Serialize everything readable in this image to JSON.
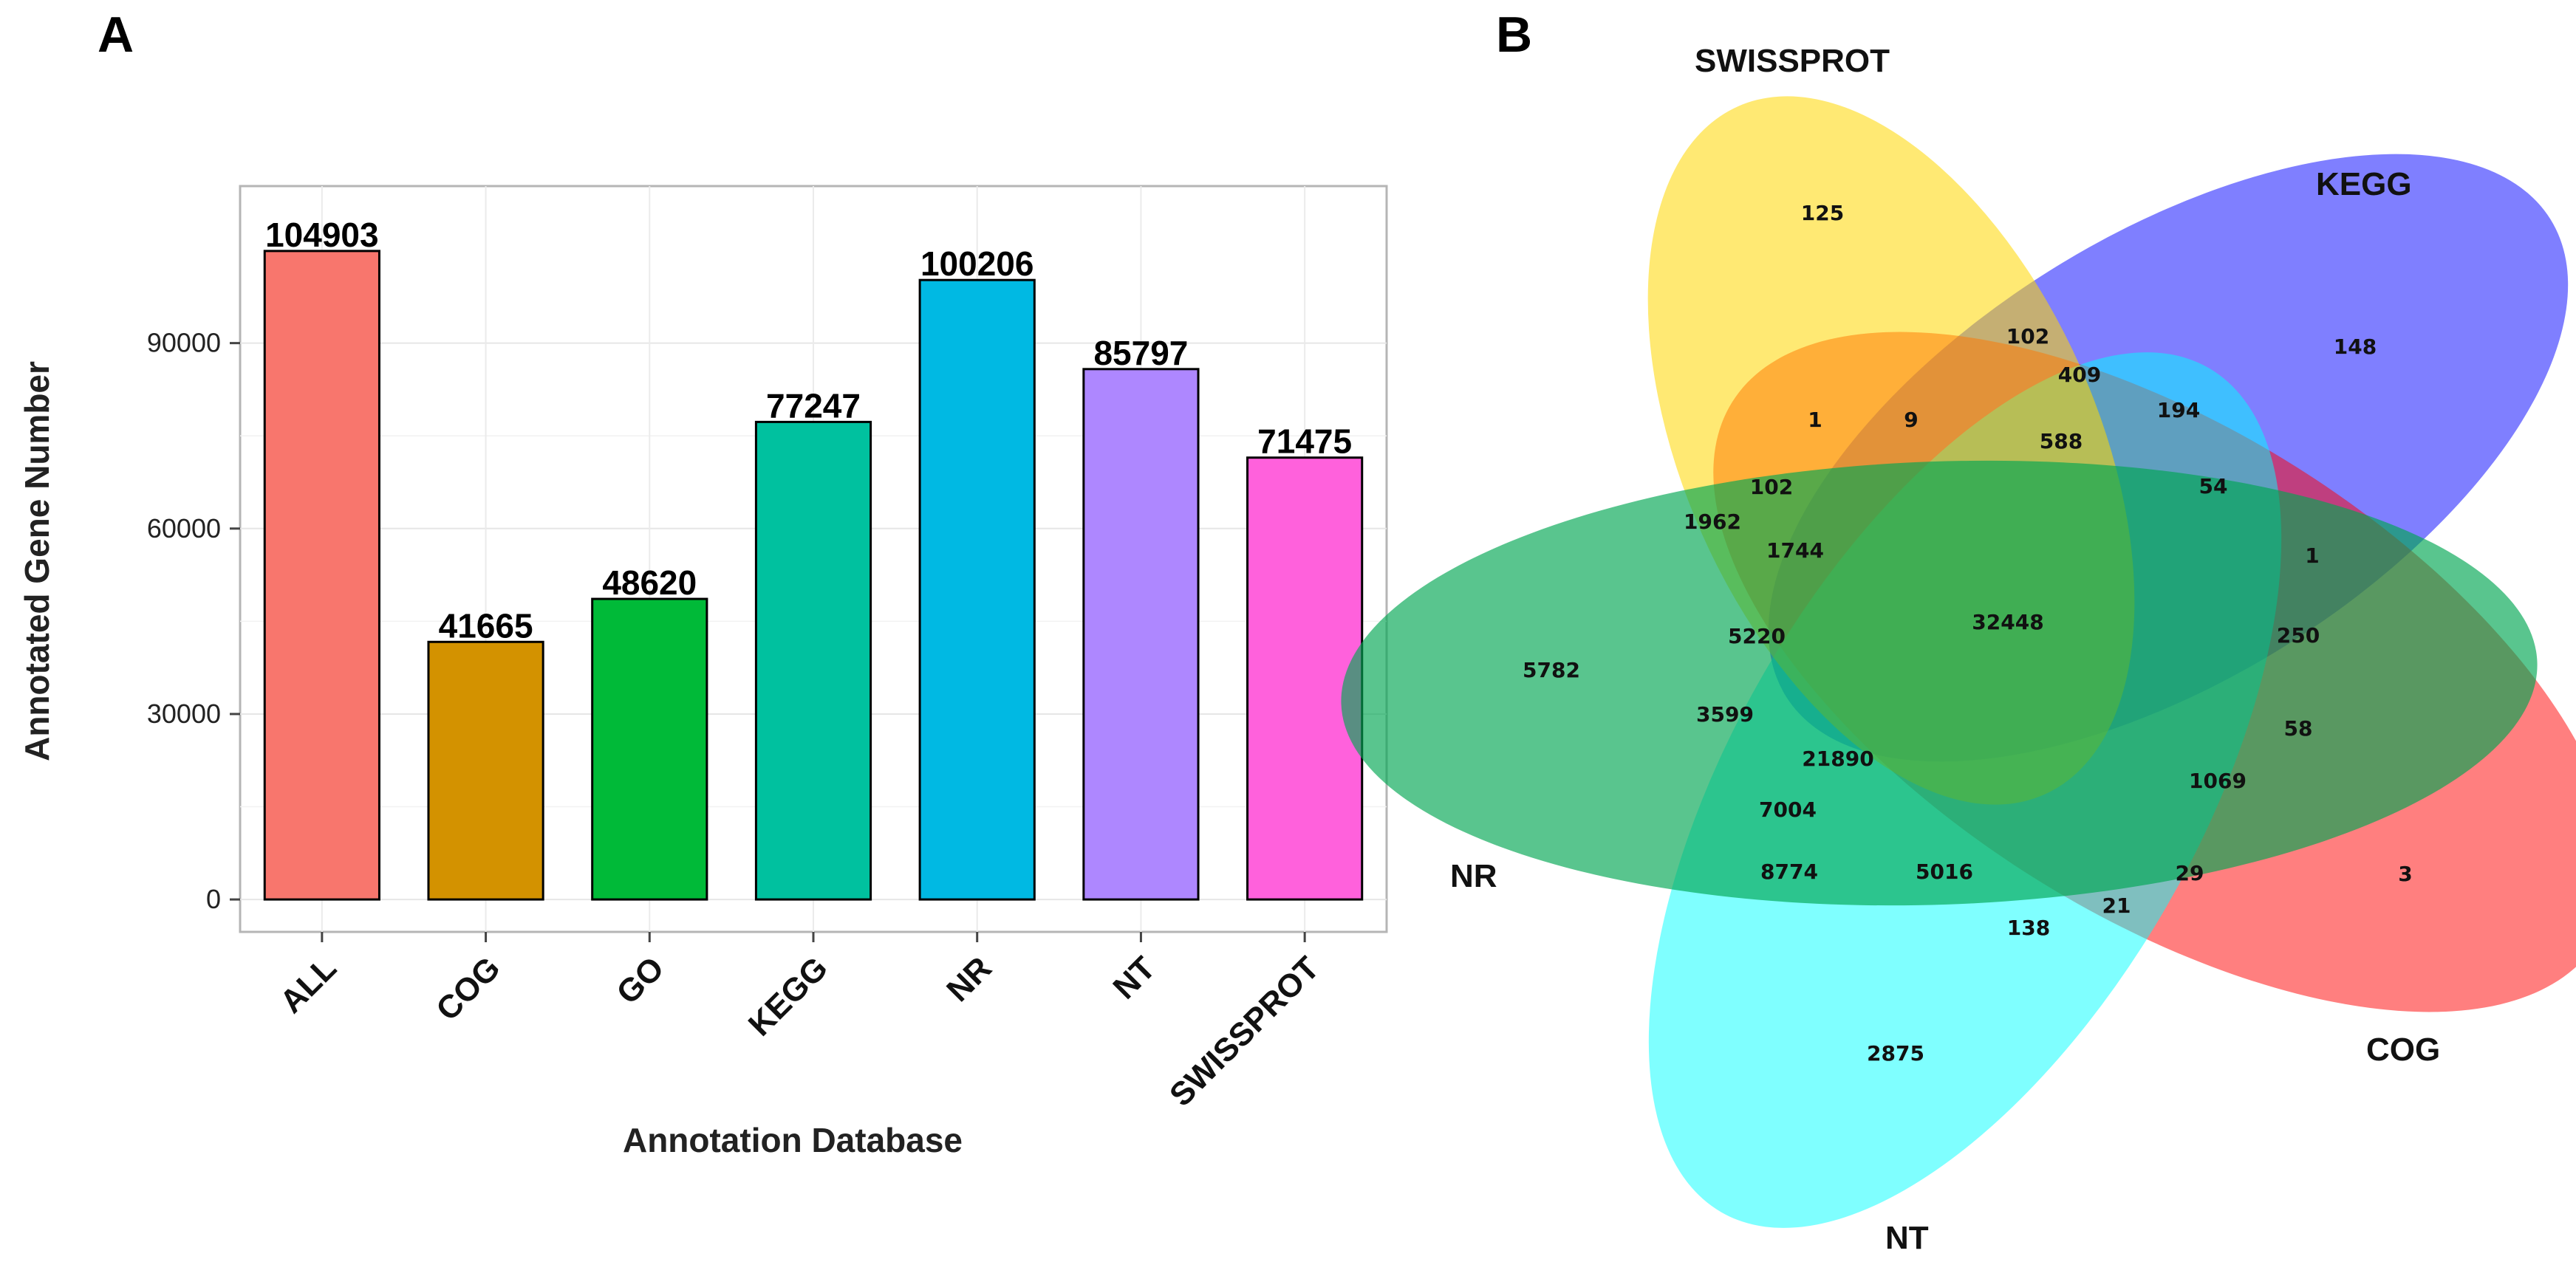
{
  "chart_data": [
    {
      "type": "bar",
      "panel_label": "A",
      "title": "",
      "xlabel": "Annotation Database",
      "ylabel": "Annotated Gene Number",
      "categories": [
        "ALL",
        "COG",
        "GO",
        "KEGG",
        "NR",
        "NT",
        "SWISSPROT"
      ],
      "values": [
        104903,
        41665,
        48620,
        77247,
        100206,
        85797,
        71475
      ],
      "value_labels": [
        "104903",
        "41665",
        "48620",
        "77247",
        "100206",
        "85797",
        "71475"
      ],
      "colors": [
        "#F8766D",
        "#D39200",
        "#00BA38",
        "#00C19F",
        "#00B9E3",
        "#AE87FF",
        "#FF61DC"
      ],
      "yticks": [
        0,
        30000,
        60000,
        90000
      ],
      "ytick_labels": [
        "0",
        "30000",
        "60000",
        "90000"
      ],
      "ylim": [
        -5245,
        115400
      ],
      "grid": true
    },
    {
      "type": "venn",
      "panel_label": "B",
      "sets": [
        {
          "name": "SWISSPROT",
          "color": "#FFD700"
        },
        {
          "name": "KEGG",
          "color": "#0000FF"
        },
        {
          "name": "COG",
          "color": "#FF0000"
        },
        {
          "name": "NT",
          "color": "#00FFFF"
        },
        {
          "name": "NR",
          "color": "#00A651"
        }
      ],
      "region_counts": [
        {
          "region": "SWISSPROT only",
          "value": "125"
        },
        {
          "region": "KEGG only",
          "value": "148"
        },
        {
          "region": "COG only",
          "value": "3"
        },
        {
          "region": "NT only",
          "value": "2875"
        },
        {
          "region": "NR only",
          "value": "5782"
        },
        {
          "region": "r1",
          "value": "102"
        },
        {
          "region": "r2",
          "value": "409"
        },
        {
          "region": "r3",
          "value": "194"
        },
        {
          "region": "r4",
          "value": "1"
        },
        {
          "region": "r5",
          "value": "9"
        },
        {
          "region": "r6",
          "value": "588"
        },
        {
          "region": "r7",
          "value": "54"
        },
        {
          "region": "r8",
          "value": "102"
        },
        {
          "region": "r9",
          "value": "1962"
        },
        {
          "region": "r10",
          "value": "1744"
        },
        {
          "region": "r11",
          "value": "1"
        },
        {
          "region": "all five",
          "value": "32448"
        },
        {
          "region": "r12",
          "value": "5220"
        },
        {
          "region": "r13",
          "value": "250"
        },
        {
          "region": "r14",
          "value": "3599"
        },
        {
          "region": "r15",
          "value": "58"
        },
        {
          "region": "r16",
          "value": "21890"
        },
        {
          "region": "r17",
          "value": "1069"
        },
        {
          "region": "r18",
          "value": "7004"
        },
        {
          "region": "r19",
          "value": "8774"
        },
        {
          "region": "r20",
          "value": "5016"
        },
        {
          "region": "r21",
          "value": "29"
        },
        {
          "region": "r22",
          "value": "21"
        },
        {
          "region": "r23",
          "value": "138"
        }
      ]
    }
  ]
}
